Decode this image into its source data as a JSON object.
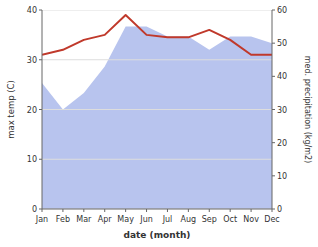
{
  "chart_data": {
    "type": "line",
    "xlabel": "date (month)",
    "ylabel": "max temp (C)",
    "y2label": "med. precipitation (kg/m2)",
    "categories": [
      "Jan",
      "Feb",
      "Mar",
      "Apr",
      "May",
      "Jun",
      "Jul",
      "Aug",
      "Sep",
      "Oct",
      "Nov",
      "Dec"
    ],
    "series": [
      {
        "type": "area",
        "axis": "y2",
        "color": "#b8c4ee",
        "values": [
          38,
          30,
          35,
          43,
          55,
          55,
          52,
          52,
          48,
          52,
          52,
          50
        ]
      },
      {
        "type": "line",
        "color": "#c0392b",
        "values": [
          31,
          32,
          34,
          35,
          39,
          35,
          34.5,
          34.5,
          36,
          34,
          31,
          31
        ]
      }
    ],
    "ylim": [
      0,
      40
    ],
    "yticks": [
      0,
      10,
      20,
      30,
      40
    ],
    "y2lim": [
      0,
      60
    ],
    "y2ticks": [
      0,
      10,
      20,
      30,
      40,
      50,
      60
    ],
    "grid": true
  }
}
